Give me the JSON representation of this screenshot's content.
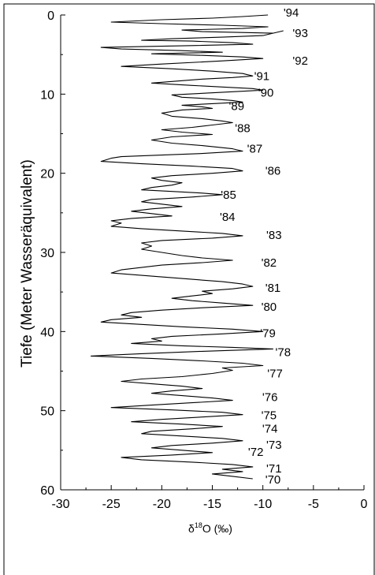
{
  "chart_data": {
    "type": "line",
    "title": "",
    "xlabel": {
      "prefix": "δ",
      "sup": "18",
      "suffix": "O (‰)"
    },
    "ylabel": "Tiefe (Meter Wasseräquivalent)",
    "xlim": [
      -30,
      0
    ],
    "ylim": [
      0,
      60
    ],
    "y_inverted": true,
    "xticks": [
      "-30",
      "-25",
      "-20",
      "-15",
      "-10",
      "-5",
      "0"
    ],
    "yticks": [
      "0",
      "10",
      "20",
      "30",
      "40",
      "50",
      "60"
    ],
    "series": [
      {
        "points": [
          [
            -9.5,
            0.0
          ],
          [
            -12,
            0.2
          ],
          [
            -15,
            0.4
          ],
          [
            -20,
            0.6
          ],
          [
            -25,
            0.9
          ],
          [
            -20,
            1.1
          ],
          [
            -14,
            1.3
          ],
          [
            -9.5,
            1.5
          ],
          [
            -12,
            1.7
          ],
          [
            -18,
            1.9
          ],
          [
            -16,
            2.1
          ],
          [
            -12.5,
            2.2
          ],
          [
            -9,
            2.3
          ],
          [
            -8,
            2.0
          ],
          [
            -10,
            2.6
          ],
          [
            -14,
            2.8
          ],
          [
            -19,
            3.0
          ],
          [
            -22,
            3.2
          ],
          [
            -17,
            3.3
          ],
          [
            -13,
            3.5
          ],
          [
            -11,
            3.7
          ],
          [
            -18,
            3.9
          ],
          [
            -26,
            4.1
          ],
          [
            -24,
            4.3
          ],
          [
            -18,
            4.5
          ],
          [
            -14,
            4.7
          ],
          [
            -21,
            4.9
          ],
          [
            -16,
            5.1
          ],
          [
            -12,
            5.3
          ],
          [
            -10,
            5.5
          ],
          [
            -14,
            5.8
          ],
          [
            -20,
            6.2
          ],
          [
            -24,
            6.5
          ],
          [
            -19,
            6.8
          ],
          [
            -15,
            7.1
          ],
          [
            -12,
            7.4
          ],
          [
            -11,
            7.7
          ],
          [
            -13,
            7.9
          ],
          [
            -16,
            8.1
          ],
          [
            -19,
            8.4
          ],
          [
            -21,
            8.6
          ],
          [
            -17,
            8.9
          ],
          [
            -14,
            9.1
          ],
          [
            -11,
            9.3
          ],
          [
            -10,
            9.5
          ],
          [
            -13,
            9.7
          ],
          [
            -16,
            9.9
          ],
          [
            -19,
            10.1
          ],
          [
            -18,
            10.4
          ],
          [
            -15,
            10.6
          ],
          [
            -13,
            10.8
          ],
          [
            -12,
            11.0
          ],
          [
            -15,
            11.2
          ],
          [
            -18,
            11.4
          ],
          [
            -16,
            11.6
          ],
          [
            -15,
            11.8
          ],
          [
            -18,
            12.0
          ],
          [
            -20,
            12.4
          ],
          [
            -19,
            12.8
          ],
          [
            -16,
            13.1
          ],
          [
            -14,
            13.4
          ],
          [
            -13,
            13.6
          ],
          [
            -15,
            13.9
          ],
          [
            -17,
            14.2
          ],
          [
            -20,
            14.5
          ],
          [
            -18,
            14.8
          ],
          [
            -15,
            15.1
          ],
          [
            -19,
            15.4
          ],
          [
            -21,
            15.8
          ],
          [
            -19,
            16.2
          ],
          [
            -16,
            16.5
          ],
          [
            -13,
            16.9
          ],
          [
            -12,
            17.2
          ],
          [
            -16,
            17.5
          ],
          [
            -20,
            17.7
          ],
          [
            -24,
            17.9
          ],
          [
            -25,
            18.1
          ],
          [
            -26,
            18.5
          ],
          [
            -22,
            18.8
          ],
          [
            -17,
            19.1
          ],
          [
            -13,
            19.4
          ],
          [
            -12,
            19.7
          ],
          [
            -15,
            20.0
          ],
          [
            -19,
            20.3
          ],
          [
            -21,
            20.6
          ],
          [
            -20,
            20.9
          ],
          [
            -18,
            21.2
          ],
          [
            -19,
            21.5
          ],
          [
            -21,
            21.8
          ],
          [
            -22,
            22.1
          ],
          [
            -19,
            22.3
          ],
          [
            -16,
            22.5
          ],
          [
            -14,
            22.7
          ],
          [
            -17,
            23.0
          ],
          [
            -21,
            23.3
          ],
          [
            -22,
            23.6
          ],
          [
            -20,
            23.9
          ],
          [
            -18,
            24.2
          ],
          [
            -21,
            24.5
          ],
          [
            -23,
            24.8
          ],
          [
            -21,
            25.1
          ],
          [
            -19,
            25.4
          ],
          [
            -23,
            25.7
          ],
          [
            -25,
            26.0
          ],
          [
            -24,
            26.3
          ],
          [
            -25,
            26.7
          ],
          [
            -22,
            27.0
          ],
          [
            -18,
            27.3
          ],
          [
            -14,
            27.6
          ],
          [
            -12,
            27.9
          ],
          [
            -15,
            28.2
          ],
          [
            -20,
            28.5
          ],
          [
            -22,
            28.8
          ],
          [
            -21,
            29.2
          ],
          [
            -22,
            29.6
          ],
          [
            -20,
            30.0
          ],
          [
            -18,
            30.4
          ],
          [
            -16,
            30.7
          ],
          [
            -13,
            31.0
          ],
          [
            -16,
            31.3
          ],
          [
            -20,
            31.6
          ],
          [
            -22,
            31.9
          ],
          [
            -24,
            32.2
          ],
          [
            -25,
            32.6
          ],
          [
            -21,
            33.0
          ],
          [
            -17,
            33.4
          ],
          [
            -14,
            33.7
          ],
          [
            -12,
            34.0
          ],
          [
            -11,
            34.3
          ],
          [
            -13,
            34.6
          ],
          [
            -16,
            34.9
          ],
          [
            -15,
            35.2
          ],
          [
            -17,
            35.5
          ],
          [
            -19,
            35.8
          ],
          [
            -17,
            36.1
          ],
          [
            -14,
            36.4
          ],
          [
            -11,
            36.7
          ],
          [
            -16,
            37.0
          ],
          [
            -20,
            37.3
          ],
          [
            -23,
            37.6
          ],
          [
            -24,
            37.9
          ],
          [
            -22,
            38.2
          ],
          [
            -25,
            38.5
          ],
          [
            -26,
            38.8
          ],
          [
            -22,
            39.1
          ],
          [
            -18,
            39.4
          ],
          [
            -13,
            39.7
          ],
          [
            -10,
            40.0
          ],
          [
            -14,
            40.3
          ],
          [
            -19,
            40.6
          ],
          [
            -21,
            40.9
          ],
          [
            -20,
            41.2
          ],
          [
            -23,
            41.5
          ],
          [
            -18,
            41.8
          ],
          [
            -13,
            42.0
          ],
          [
            -9,
            42.2
          ],
          [
            -16,
            42.5
          ],
          [
            -22,
            42.8
          ],
          [
            -27,
            43.1
          ],
          [
            -21,
            43.4
          ],
          [
            -16,
            43.7
          ],
          [
            -12,
            44.0
          ],
          [
            -10,
            44.3
          ],
          [
            -14,
            44.6
          ],
          [
            -13,
            44.9
          ],
          [
            -15,
            45.3
          ],
          [
            -18,
            45.7
          ],
          [
            -22,
            46.0
          ],
          [
            -24,
            46.3
          ],
          [
            -21,
            46.6
          ],
          [
            -18,
            46.9
          ],
          [
            -16,
            47.2
          ],
          [
            -19,
            47.5
          ],
          [
            -21,
            47.8
          ],
          [
            -18,
            48.1
          ],
          [
            -15,
            48.4
          ],
          [
            -13,
            48.7
          ],
          [
            -17,
            49.0
          ],
          [
            -21,
            49.3
          ],
          [
            -25,
            49.6
          ],
          [
            -19,
            49.9
          ],
          [
            -14,
            50.2
          ],
          [
            -12,
            50.5
          ],
          [
            -16,
            50.8
          ],
          [
            -20,
            51.1
          ],
          [
            -23,
            51.4
          ],
          [
            -18,
            51.7
          ],
          [
            -14,
            52.0
          ],
          [
            -17,
            52.3
          ],
          [
            -21,
            52.6
          ],
          [
            -22,
            52.9
          ],
          [
            -18,
            53.2
          ],
          [
            -14,
            53.5
          ],
          [
            -12,
            53.8
          ],
          [
            -15,
            54.1
          ],
          [
            -19,
            54.4
          ],
          [
            -21,
            54.7
          ],
          [
            -18,
            55.0
          ],
          [
            -15,
            55.3
          ],
          [
            -19,
            55.6
          ],
          [
            -24,
            55.9
          ],
          [
            -22,
            56.2
          ],
          [
            -17,
            56.5
          ],
          [
            -13,
            56.8
          ],
          [
            -11,
            57.1
          ],
          [
            -14,
            57.4
          ],
          [
            -12,
            57.7
          ],
          [
            -15,
            58.0
          ],
          [
            -13,
            58.3
          ],
          [
            -11,
            58.6
          ]
        ]
      }
    ],
    "annotations": [
      {
        "text": "'94",
        "x": -7.2,
        "y": -0.3
      },
      {
        "text": "'93",
        "x": -6.3,
        "y": 2.3
      },
      {
        "text": "'92",
        "x": -6.3,
        "y": 5.8
      },
      {
        "text": "'91",
        "x": -10.1,
        "y": 7.7
      },
      {
        "text": "'90",
        "x": -9.7,
        "y": 9.8
      },
      {
        "text": "'89",
        "x": -12.6,
        "y": 11.5
      },
      {
        "text": "'88",
        "x": -12.0,
        "y": 14.3
      },
      {
        "text": "'87",
        "x": -10.8,
        "y": 16.9
      },
      {
        "text": "'86",
        "x": -9.0,
        "y": 19.7
      },
      {
        "text": "'85",
        "x": -13.4,
        "y": 22.7
      },
      {
        "text": "'84",
        "x": -13.5,
        "y": 25.5
      },
      {
        "text": "'83",
        "x": -8.9,
        "y": 27.8
      },
      {
        "text": "'82",
        "x": -9.4,
        "y": 31.3
      },
      {
        "text": "'81",
        "x": -9.0,
        "y": 34.5
      },
      {
        "text": "'80",
        "x": -9.4,
        "y": 36.9
      },
      {
        "text": "'79",
        "x": -9.5,
        "y": 40.2
      },
      {
        "text": "'78",
        "x": -8.0,
        "y": 42.6
      },
      {
        "text": "'77",
        "x": -8.8,
        "y": 45.3
      },
      {
        "text": "'76",
        "x": -9.3,
        "y": 48.3
      },
      {
        "text": "'75",
        "x": -9.4,
        "y": 50.6
      },
      {
        "text": "'74",
        "x": -9.3,
        "y": 52.3
      },
      {
        "text": "'73",
        "x": -8.9,
        "y": 54.3
      },
      {
        "text": "'72",
        "x": -10.7,
        "y": 55.2
      },
      {
        "text": "'71",
        "x": -8.9,
        "y": 57.3
      },
      {
        "text": "'70",
        "x": -9.0,
        "y": 58.7
      }
    ]
  }
}
